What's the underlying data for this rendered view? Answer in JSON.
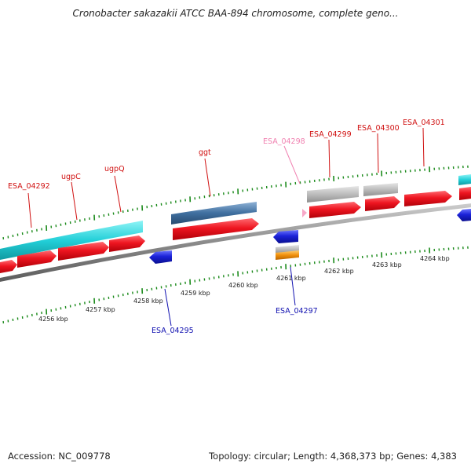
{
  "title": "Cronobacter sakazakii ATCC BAA-894 chromosome, complete geno...",
  "footer": {
    "accession": "Accession: NC_009778",
    "summary": "Topology: circular; Length: 4,368,373 bp; Genes: 4,383"
  },
  "colors": {
    "forward_cds": "#e8101a",
    "reverse_cds": "#1b22d8",
    "cyan_feature": "#1fd0d8",
    "steelblue_feature": "#3f6f9f",
    "gray_feature": "#b8b8b8",
    "orange_feature": "#f0900c",
    "pink_label": "#f080b0",
    "backbone": "#808080",
    "tick": "#1a8a1a",
    "label_red": "#d01010",
    "label_blue": "#1010b0"
  },
  "scale_labels": [
    "4256 kbp",
    "4257 kbp",
    "4258 kbp",
    "4259 kbp",
    "4260 kbp",
    "4261 kbp",
    "4262 kbp",
    "4263 kbp",
    "4264 kbp"
  ],
  "gene_labels": [
    {
      "text": "ESA_04292",
      "color": "red"
    },
    {
      "text": "ugpC",
      "color": "red"
    },
    {
      "text": "ugpQ",
      "color": "red"
    },
    {
      "text": "ggt",
      "color": "red"
    },
    {
      "text": "ESA_04298",
      "color": "pink"
    },
    {
      "text": "ESA_04299",
      "color": "red"
    },
    {
      "text": "ESA_04300",
      "color": "red"
    },
    {
      "text": "ESA_04301",
      "color": "red"
    },
    {
      "text": "ESA_04295",
      "color": "blue"
    },
    {
      "text": "ESA_04297",
      "color": "blue"
    }
  ]
}
